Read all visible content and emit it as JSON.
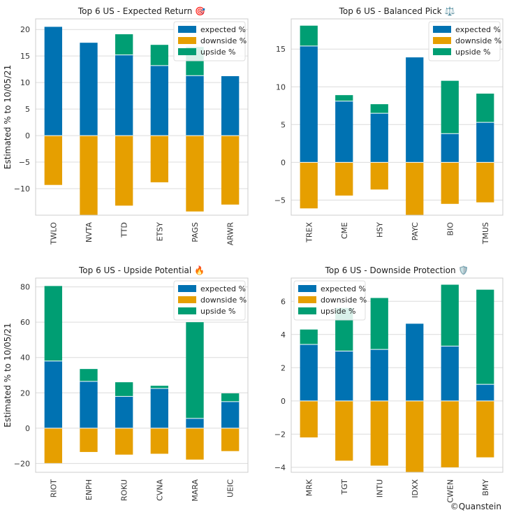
{
  "figure": {
    "ylabel": "Estimated % to 10/05/21",
    "credit": "©Quanstein",
    "legend_labels": [
      "expected %",
      "downside %",
      "upside %"
    ],
    "colors": {
      "expected": "#0072b2",
      "downside": "#e69f00",
      "upside": "#009e73"
    }
  },
  "chart_data": [
    {
      "type": "bar",
      "stacked": true,
      "title": "Top 6 US - Expected Return 🎯",
      "categories": [
        "TWLO",
        "NVTA",
        "TTD",
        "ETSY",
        "PAGS",
        "ARWR"
      ],
      "series": [
        {
          "name": "expected %",
          "values": [
            20.5,
            17.5,
            15.2,
            13.2,
            11.3,
            11.2
          ]
        },
        {
          "name": "downside %",
          "values": [
            -9.3,
            -15.0,
            -13.2,
            -8.8,
            -14.3,
            -13.0
          ]
        },
        {
          "name": "upside %",
          "values": [
            0.0,
            0.0,
            3.9,
            3.9,
            5.4,
            0.0
          ]
        }
      ],
      "ylim": [
        -15,
        22
      ],
      "yticks": [
        -10,
        -5,
        0,
        5,
        10,
        15,
        20
      ],
      "legend": "upper-right"
    },
    {
      "type": "bar",
      "stacked": true,
      "title": "Top 6 US - Balanced Pick ⚖️",
      "categories": [
        "TREX",
        "CME",
        "HSY",
        "PAYC",
        "BIO",
        "TMUS"
      ],
      "series": [
        {
          "name": "expected %",
          "values": [
            15.4,
            8.1,
            6.5,
            13.9,
            3.8,
            5.3
          ]
        },
        {
          "name": "downside %",
          "values": [
            -6.1,
            -4.4,
            -3.6,
            -7.0,
            -5.5,
            -5.3
          ]
        },
        {
          "name": "upside %",
          "values": [
            2.7,
            0.8,
            1.2,
            0.0,
            7.0,
            3.8
          ]
        }
      ],
      "ylim": [
        -7,
        19
      ],
      "yticks": [
        -5,
        0,
        5,
        10,
        15
      ],
      "legend": "upper-right"
    },
    {
      "type": "bar",
      "stacked": true,
      "title": "Top 6 US - Upside Potential 🔥",
      "categories": [
        "RIOT",
        "ENPH",
        "ROKU",
        "CVNA",
        "MARA",
        "UEIC"
      ],
      "series": [
        {
          "name": "expected %",
          "values": [
            38.0,
            26.5,
            18.0,
            22.5,
            5.5,
            15.0
          ]
        },
        {
          "name": "downside %",
          "values": [
            -19.8,
            -13.5,
            -15.0,
            -14.5,
            -17.8,
            -13.0
          ]
        },
        {
          "name": "upside %",
          "values": [
            42.5,
            7.0,
            8.0,
            1.5,
            54.5,
            4.7
          ]
        }
      ],
      "ylim": [
        -25,
        85
      ],
      "yticks": [
        -20,
        0,
        20,
        40,
        60,
        80
      ],
      "legend": "upper-right"
    },
    {
      "type": "bar",
      "stacked": true,
      "title": "Top 6 US - Downside Protection 🛡️",
      "categories": [
        "MRK",
        "TGT",
        "INTU",
        "IDXX",
        "CWEN",
        "BMY"
      ],
      "series": [
        {
          "name": "expected %",
          "values": [
            3.4,
            3.0,
            3.1,
            4.65,
            3.3,
            1.0
          ]
        },
        {
          "name": "downside %",
          "values": [
            -2.2,
            -3.6,
            -3.9,
            -4.35,
            -4.0,
            -3.4
          ]
        },
        {
          "name": "upside %",
          "values": [
            0.9,
            2.6,
            3.1,
            0.0,
            3.7,
            5.7
          ]
        }
      ],
      "ylim": [
        -4.3,
        7.4
      ],
      "yticks": [
        -4,
        -2,
        0,
        2,
        4,
        6
      ],
      "legend": "upper-left"
    }
  ]
}
